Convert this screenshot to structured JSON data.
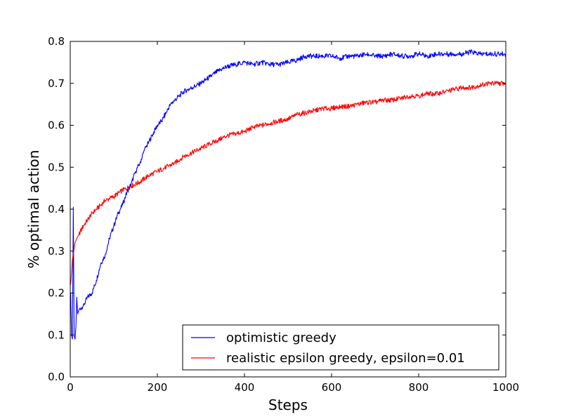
{
  "chart_data": {
    "type": "line",
    "xlabel": "Steps",
    "ylabel": "% optimal action",
    "xlim": [
      0,
      1000
    ],
    "ylim": [
      0.0,
      0.8
    ],
    "xticks": [
      0,
      200,
      400,
      600,
      800,
      1000
    ],
    "yticks": [
      0.0,
      0.1,
      0.2,
      0.3,
      0.4,
      0.5,
      0.6,
      0.7,
      0.8
    ],
    "xtick_labels": [
      "0",
      "200",
      "400",
      "600",
      "800",
      "1000"
    ],
    "ytick_labels": [
      "0.0",
      "0.1",
      "0.2",
      "0.3",
      "0.4",
      "0.5",
      "0.6",
      "0.7",
      "0.8"
    ],
    "grid": false,
    "legend_position": "lower-right",
    "series": [
      {
        "name": "optimistic greedy",
        "color": "#0000ff",
        "x": [
          1,
          3,
          5,
          7,
          9,
          11,
          13,
          15,
          17,
          20,
          30,
          40,
          50,
          60,
          70,
          80,
          90,
          100,
          110,
          120,
          130,
          140,
          150,
          160,
          170,
          180,
          190,
          200,
          210,
          220,
          230,
          240,
          250,
          260,
          270,
          280,
          290,
          300,
          320,
          340,
          360,
          380,
          400,
          420,
          440,
          460,
          480,
          500,
          520,
          540,
          560,
          580,
          600,
          620,
          640,
          660,
          680,
          700,
          720,
          740,
          760,
          780,
          800,
          820,
          840,
          860,
          880,
          900,
          920,
          940,
          960,
          980,
          1000
        ],
        "y": [
          0.2,
          0.1,
          0.09,
          0.405,
          0.1,
          0.09,
          0.12,
          0.19,
          0.15,
          0.16,
          0.17,
          0.19,
          0.2,
          0.23,
          0.27,
          0.29,
          0.33,
          0.36,
          0.39,
          0.41,
          0.44,
          0.46,
          0.49,
          0.51,
          0.54,
          0.56,
          0.58,
          0.6,
          0.61,
          0.63,
          0.65,
          0.66,
          0.67,
          0.68,
          0.685,
          0.69,
          0.695,
          0.7,
          0.715,
          0.73,
          0.74,
          0.745,
          0.75,
          0.745,
          0.75,
          0.745,
          0.745,
          0.75,
          0.755,
          0.765,
          0.765,
          0.765,
          0.765,
          0.76,
          0.765,
          0.765,
          0.77,
          0.765,
          0.765,
          0.77,
          0.765,
          0.765,
          0.77,
          0.765,
          0.77,
          0.77,
          0.77,
          0.77,
          0.775,
          0.77,
          0.77,
          0.77,
          0.77
        ]
      },
      {
        "name": "realistic epsilon greedy, epsilon=0.01",
        "color": "#ff0000",
        "x": [
          1,
          3,
          5,
          8,
          11,
          15,
          20,
          30,
          40,
          50,
          60,
          70,
          80,
          90,
          100,
          120,
          140,
          160,
          180,
          200,
          220,
          240,
          260,
          280,
          300,
          320,
          340,
          360,
          380,
          400,
          420,
          440,
          460,
          480,
          500,
          520,
          540,
          560,
          580,
          600,
          620,
          640,
          660,
          680,
          700,
          720,
          740,
          760,
          780,
          800,
          820,
          840,
          860,
          880,
          900,
          920,
          940,
          960,
          980,
          1000
        ],
        "y": [
          0.22,
          0.25,
          0.28,
          0.3,
          0.32,
          0.33,
          0.34,
          0.36,
          0.375,
          0.39,
          0.4,
          0.41,
          0.42,
          0.425,
          0.43,
          0.445,
          0.455,
          0.465,
          0.48,
          0.49,
          0.5,
          0.51,
          0.525,
          0.535,
          0.545,
          0.555,
          0.565,
          0.575,
          0.58,
          0.585,
          0.595,
          0.6,
          0.605,
          0.61,
          0.615,
          0.625,
          0.63,
          0.635,
          0.64,
          0.64,
          0.645,
          0.645,
          0.65,
          0.655,
          0.655,
          0.66,
          0.66,
          0.665,
          0.67,
          0.67,
          0.675,
          0.675,
          0.68,
          0.685,
          0.69,
          0.69,
          0.695,
          0.7,
          0.7,
          0.7
        ]
      }
    ]
  }
}
